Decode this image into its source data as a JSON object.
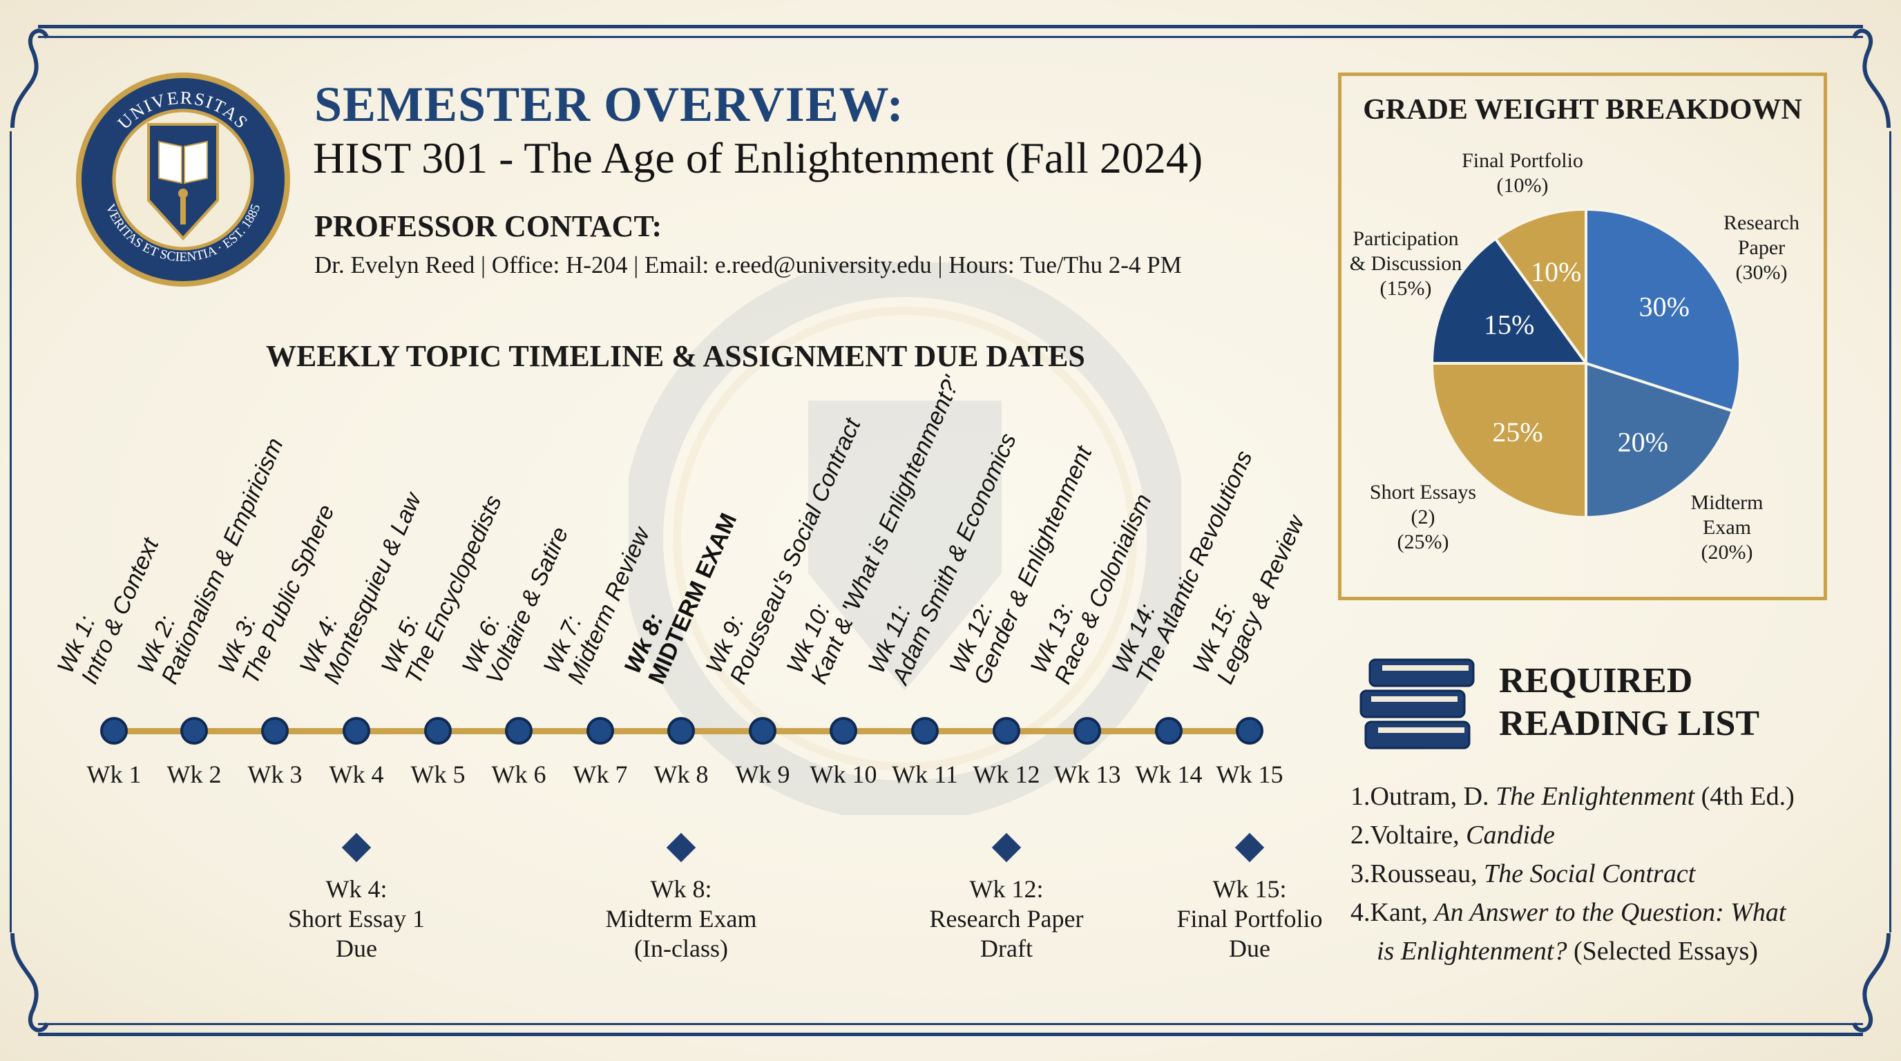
{
  "seal": {
    "top_text": "UNIVERSITAS",
    "bottom_text": "VERITAS ET SCIENTIA · EST. 1885"
  },
  "header": {
    "title": "SEMESTER OVERVIEW:",
    "course": "HIST 301 - The Age of Enlightenment (Fall 2024)",
    "contact_heading": "PROFESSOR CONTACT:",
    "contact_line": "Dr. Evelyn Reed | Office: H-204 | Email: e.reed@university.edu | Hours: Tue/Thu 2-4 PM"
  },
  "timeline": {
    "heading": "WEEKLY TOPIC TIMELINE & ASSIGNMENT DUE DATES",
    "weeks": [
      {
        "week": "Wk 1",
        "label": "Wk 1:",
        "topic": "Intro & Context"
      },
      {
        "week": "Wk 2",
        "label": "Wk 2:",
        "topic": "Rationalism & Empiricism"
      },
      {
        "week": "Wk 3",
        "label": "Wk 3:",
        "topic": "The Public Sphere"
      },
      {
        "week": "Wk 4",
        "label": "Wk 4:",
        "topic": "Montesquieu & Law"
      },
      {
        "week": "Wk 5",
        "label": "Wk 5:",
        "topic": "The Encyclopedists"
      },
      {
        "week": "Wk 6",
        "label": "Wk 6:",
        "topic": "Voltaire & Satire"
      },
      {
        "week": "Wk 7",
        "label": "Wk 7:",
        "topic": "Midterm Review"
      },
      {
        "week": "Wk 8",
        "label": "Wk 8:",
        "topic": "MIDTERM EXAM"
      },
      {
        "week": "Wk 9",
        "label": "Wk 9:",
        "topic": "Rousseau's Social Contract"
      },
      {
        "week": "Wk 10",
        "label": "Wk 10:",
        "topic": "Kant & 'What is Enlightenment?'"
      },
      {
        "week": "Wk 11",
        "label": "Wk 11:",
        "topic": "Adam Smith & Economics"
      },
      {
        "week": "Wk 12",
        "label": "Wk 12:",
        "topic": "Gender & Enlightenment"
      },
      {
        "week": "Wk 13",
        "label": "Wk 13:",
        "topic": "Race & Colonialism"
      },
      {
        "week": "Wk 14",
        "label": "Wk 14:",
        "topic": "The Atlantic Revolutions"
      },
      {
        "week": "Wk 15",
        "label": "Wk 15:",
        "topic": "Legacy & Review"
      }
    ],
    "deadlines": [
      {
        "week_index": 3,
        "lines": [
          "Wk 4:",
          "Short Essay 1",
          "Due"
        ]
      },
      {
        "week_index": 7,
        "lines": [
          "Wk 8:",
          "Midterm Exam",
          "(In-class)"
        ]
      },
      {
        "week_index": 11,
        "lines": [
          "Wk 12:",
          "Research Paper",
          "Draft"
        ]
      },
      {
        "week_index": 14,
        "lines": [
          "Wk 15:",
          "Final Portfolio",
          "Due"
        ]
      }
    ]
  },
  "chart_data": {
    "type": "pie",
    "title": "GRADE WEIGHT BREAKDOWN",
    "slices": [
      {
        "name": "Research Paper",
        "label_lines": [
          "Research",
          "Paper",
          "(30%)"
        ],
        "value": 30,
        "data_label": "30%",
        "color": "#3a71b8"
      },
      {
        "name": "Midterm Exam",
        "label_lines": [
          "Midterm",
          "Exam",
          "(20%)"
        ],
        "value": 20,
        "data_label": "20%",
        "color": "#416fa3"
      },
      {
        "name": "Short Essays (2)",
        "label_lines": [
          "Short Essays",
          "(2)",
          "(25%)"
        ],
        "value": 25,
        "data_label": "25%",
        "color": "#c9a24b"
      },
      {
        "name": "Participation & Discussion",
        "label_lines": [
          "Participation",
          "& Discussion",
          "(15%)"
        ],
        "value": 15,
        "data_label": "15%",
        "color": "#1b4278"
      },
      {
        "name": "Final Portfolio",
        "label_lines": [
          "Final Portfolio",
          "(10%)"
        ],
        "value": 10,
        "data_label": "10%",
        "color": "#c9a24b"
      }
    ]
  },
  "reading": {
    "heading_lines": [
      "REQUIRED",
      "READING LIST"
    ],
    "items": [
      {
        "num": "1.",
        "pre": "Outram, D. ",
        "title": "The Enlightenment",
        "post": " (4th Ed.)"
      },
      {
        "num": "2.",
        "pre": "Voltaire, ",
        "title": "Candide",
        "post": ""
      },
      {
        "num": "3.",
        "pre": "Rousseau, ",
        "title": "The Social Contract",
        "post": ""
      },
      {
        "num": "4.",
        "pre": "Kant, ",
        "title": "An Answer to the Question: What",
        "post": ""
      },
      {
        "num": "",
        "pre": "",
        "title": "is Enlightenment?",
        "post": " (Selected Essays)"
      }
    ]
  },
  "colors": {
    "navy": "#1f3f73",
    "gold": "#c9a24b",
    "paper": "#f8f4e8"
  }
}
